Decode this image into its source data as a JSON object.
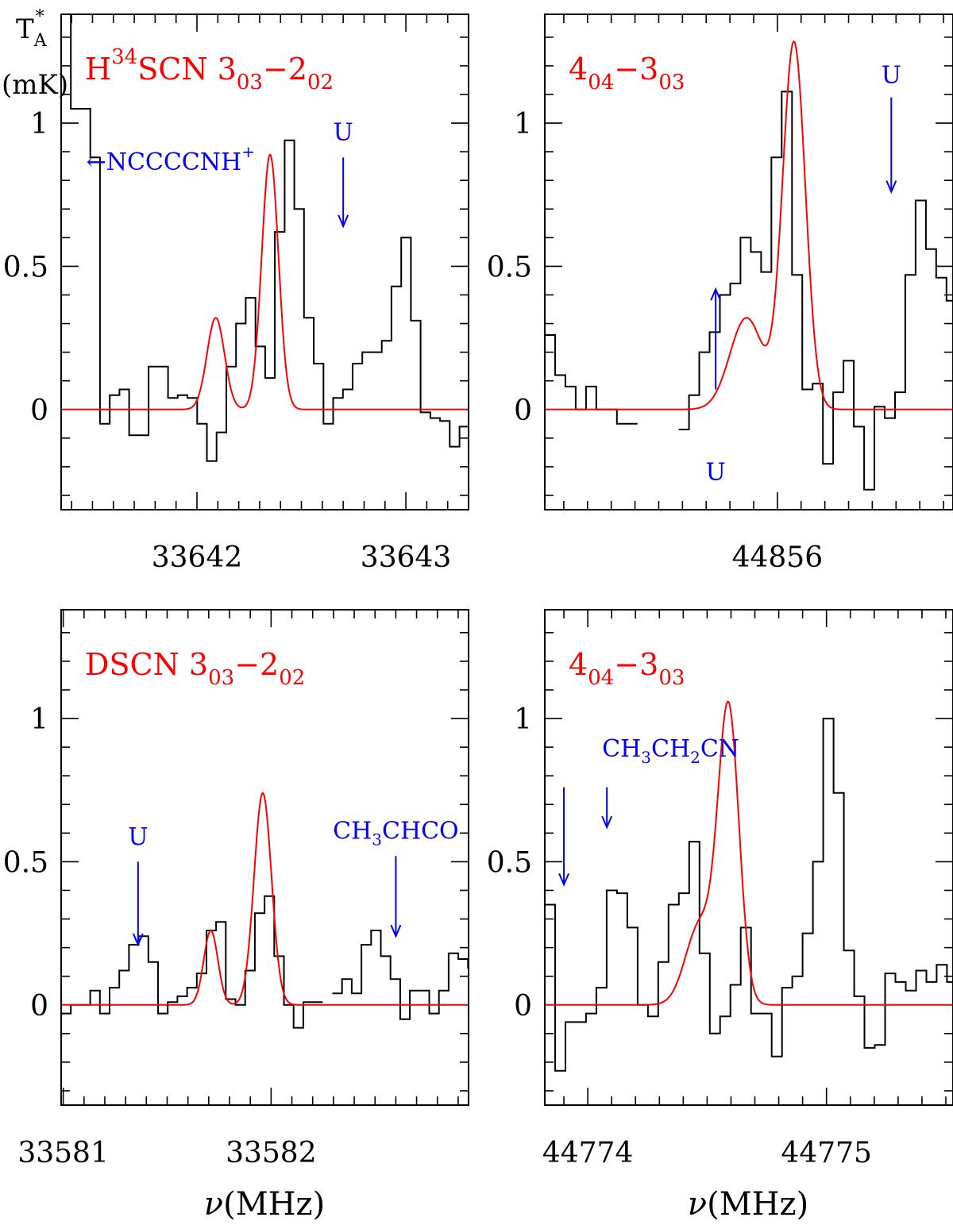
{
  "figure": {
    "ylabel_top": "T",
    "ylabel_sub": "A",
    "ylabel_sup": "*",
    "ylabel_unit": "(mK)",
    "xlabel_sym": "ν",
    "xlabel_unit": "(MHz)"
  },
  "colors": {
    "data": "#000000",
    "fit": "#ff0000",
    "annotation": "#0000ff"
  },
  "chart_data": [
    {
      "type": "line",
      "title_parts": [
        [
          "H",
          ""
        ],
        [
          "34",
          "sup"
        ],
        [
          "SCN 3",
          ""
        ],
        [
          "03",
          "sub"
        ],
        [
          "−2",
          ""
        ],
        [
          "02",
          "sub"
        ]
      ],
      "xlim": [
        33641.35,
        33643.3
      ],
      "ylim": [
        -0.35,
        1.38
      ],
      "xticks": [
        33642,
        33643
      ],
      "xtick_labels": [
        "33642",
        "33643"
      ],
      "yticks": [
        0,
        0.5,
        1
      ],
      "ytick_labels": [
        "0",
        "0.5",
        "1"
      ],
      "minor_x_step": 0.1,
      "minor_y_step": 0.1,
      "series": [
        {
          "name": "observed",
          "style": "step",
          "bin": 0.0465,
          "x0": 33641.35,
          "values": [
            1.38,
            1.05,
            1.05,
            0.88,
            -0.05,
            0.05,
            0.07,
            -0.09,
            -0.09,
            0.15,
            0.15,
            0.04,
            0.05,
            0.04,
            -0.05,
            -0.18,
            -0.08,
            0.15,
            0.3,
            0.39,
            0.22,
            0.11,
            0.62,
            0.94,
            0.7,
            0.32,
            0.16,
            -0.05,
            0.04,
            0.07,
            0.16,
            0.2,
            0.2,
            0.24,
            0.43,
            0.6,
            0.31,
            -0.01,
            -0.03,
            -0.04,
            -0.13,
            -0.06,
            0.02,
            -0.03,
            0.02,
            0.02,
            0.0,
            0.09,
            0.17,
            0.17
          ]
        },
        {
          "name": "fit",
          "style": "gaussian",
          "baseline": 0,
          "components": [
            {
              "center": 33642.09,
              "amp": 0.32,
              "sigma": 0.042
            },
            {
              "center": 33642.35,
              "amp": 0.89,
              "sigma": 0.04
            }
          ]
        }
      ],
      "annotations": [
        {
          "label": "←NCCCCNH",
          "sup": "+",
          "kind": "text",
          "x": 33641.47,
          "y": 0.87
        },
        {
          "label": "U",
          "kind": "arrow_down",
          "x": 33642.7,
          "y_text": 0.94,
          "y_start": 0.88,
          "y_end": 0.64
        }
      ]
    },
    {
      "type": "line",
      "title_parts": [
        [
          "4",
          ""
        ],
        [
          "04",
          "sub"
        ],
        [
          "−3",
          ""
        ],
        [
          "03",
          "sub"
        ]
      ],
      "xlim": [
        44855.02,
        44856.74
      ],
      "ylim": [
        -0.35,
        1.38
      ],
      "xticks": [
        44856
      ],
      "xtick_labels": [
        "44856"
      ],
      "yticks": [
        0,
        0.5,
        1
      ],
      "ytick_labels": [
        "0",
        "0.5",
        "1"
      ],
      "minor_x_step": 0.1,
      "minor_y_step": 0.1,
      "series": [
        {
          "name": "observed",
          "style": "step",
          "bin": 0.0434,
          "x0": 44855.02,
          "values": [
            0.26,
            0.12,
            0.08,
            0.0,
            0.08,
            0.0,
            0.0,
            -0.05,
            -0.05,
            null,
            null,
            null,
            null,
            -0.07,
            0.05,
            0.2,
            0.27,
            0.4,
            0.44,
            0.6,
            0.55,
            0.48,
            0.88,
            1.11,
            0.47,
            0.07,
            0.09,
            -0.19,
            0.06,
            0.17,
            -0.06,
            -0.28,
            0.01,
            -0.03,
            0.06,
            0.47,
            0.73,
            0.56,
            0.46,
            0.38,
            0.32,
            0.3,
            0.24,
            0.46
          ]
        },
        {
          "name": "fit",
          "style": "gaussian",
          "baseline": 0,
          "components": [
            {
              "center": 44856.07,
              "amp": 1.28,
              "sigma": 0.048
            },
            {
              "center": 44855.87,
              "amp": 0.32,
              "sigma": 0.07
            }
          ]
        }
      ],
      "annotations": [
        {
          "label": "U",
          "kind": "arrow_down",
          "x": 44856.48,
          "y_text": 1.14,
          "y_start": 1.09,
          "y_end": 0.76
        },
        {
          "label": "U",
          "kind": "arrow_up",
          "x": 44855.74,
          "y_text": -0.18,
          "y_start": 0.07,
          "y_end": 0.42
        }
      ]
    },
    {
      "type": "line",
      "title_parts": [
        [
          "DSCN 3",
          ""
        ],
        [
          "03",
          "sub"
        ],
        [
          "−2",
          ""
        ],
        [
          "02",
          "sub"
        ]
      ],
      "xlim": [
        33580.99,
        33582.95
      ],
      "ylim": [
        -0.35,
        1.38
      ],
      "xticks": [
        33581,
        33582
      ],
      "xtick_labels": [
        "33581",
        "33582"
      ],
      "yticks": [
        0,
        0.5,
        1
      ],
      "ytick_labels": [
        "0",
        "0.5",
        "1"
      ],
      "minor_x_step": 0.1,
      "minor_y_step": 0.1,
      "series": [
        {
          "name": "observed",
          "style": "step",
          "bin": 0.0466,
          "x0": 33580.99,
          "values": [
            -0.03,
            0.0,
            0.0,
            0.05,
            -0.03,
            0.06,
            0.12,
            0.21,
            0.24,
            0.15,
            -0.03,
            0.01,
            0.03,
            0.06,
            0.11,
            0.26,
            0.29,
            0.02,
            0.0,
            0.12,
            0.32,
            0.38,
            0.17,
            0.0,
            -0.08,
            0.01,
            0.01,
            null,
            0.04,
            0.09,
            0.04,
            0.21,
            0.26,
            0.17,
            0.09,
            -0.05,
            0.05,
            0.05,
            -0.03,
            0.05,
            0.18,
            0.16,
            0.13
          ]
        },
        {
          "name": "fit",
          "style": "gaussian",
          "baseline": 0,
          "components": [
            {
              "center": 33581.71,
              "amp": 0.26,
              "sigma": 0.034
            },
            {
              "center": 33581.96,
              "amp": 0.74,
              "sigma": 0.042
            }
          ]
        }
      ],
      "annotations": [
        {
          "label": "U",
          "kind": "arrow_down",
          "x": 33581.36,
          "y_text": 0.56,
          "y_start": 0.5,
          "y_end": 0.21
        },
        {
          "label": "CH",
          "sub": "3",
          "label_after": "CHCO",
          "kind": "arrow_down",
          "x": 33582.6,
          "y_text": 0.58,
          "y_start": 0.52,
          "y_end": 0.24
        }
      ]
    },
    {
      "type": "line",
      "title_parts": [
        [
          "4",
          ""
        ],
        [
          "04",
          "sub"
        ],
        [
          "−3",
          ""
        ],
        [
          "03",
          "sub"
        ]
      ],
      "xlim": [
        44773.82,
        44775.53
      ],
      "ylim": [
        -0.35,
        1.38
      ],
      "xticks": [
        44774,
        44775
      ],
      "xtick_labels": [
        "44774",
        "44775"
      ],
      "yticks": [
        0,
        0.5,
        1
      ],
      "ytick_labels": [
        "0",
        "0.5",
        "1"
      ],
      "minor_x_step": 0.1,
      "minor_y_step": 0.1,
      "series": [
        {
          "name": "observed",
          "style": "step",
          "bin": 0.0432,
          "x0": 44773.82,
          "values": [
            0.35,
            -0.23,
            -0.06,
            -0.06,
            -0.03,
            0.06,
            0.4,
            0.39,
            0.27,
            0.0,
            -0.04,
            0.15,
            0.35,
            0.39,
            0.57,
            0.18,
            -0.1,
            -0.04,
            0.07,
            0.27,
            -0.03,
            -0.03,
            -0.18,
            0.06,
            0.1,
            0.25,
            0.5,
            1.0,
            0.74,
            0.19,
            0.03,
            -0.15,
            -0.14,
            0.11,
            0.08,
            0.05,
            0.12,
            0.08,
            0.14,
            0.08,
            -0.06,
            -0.17,
            -0.08,
            -0.24
          ]
        },
        {
          "name": "fit",
          "style": "gaussian",
          "baseline": 0,
          "components": [
            {
              "center": 44774.59,
              "amp": 1.02,
              "sigma": 0.044
            },
            {
              "center": 44774.47,
              "amp": 0.28,
              "sigma": 0.06
            }
          ]
        }
      ],
      "annotations": [
        {
          "label": "CH",
          "sub": "3",
          "label_mid": "CH",
          "sub2": "2",
          "label_after": "CN",
          "kind": "text",
          "x": 44774.06,
          "y": 0.9
        },
        {
          "label": "",
          "kind": "arrow_down",
          "x": 44773.9,
          "y_start": 0.76,
          "y_end": 0.42
        },
        {
          "label": "",
          "kind": "arrow_down",
          "x": 44774.08,
          "y_start": 0.76,
          "y_end": 0.62
        }
      ]
    }
  ]
}
